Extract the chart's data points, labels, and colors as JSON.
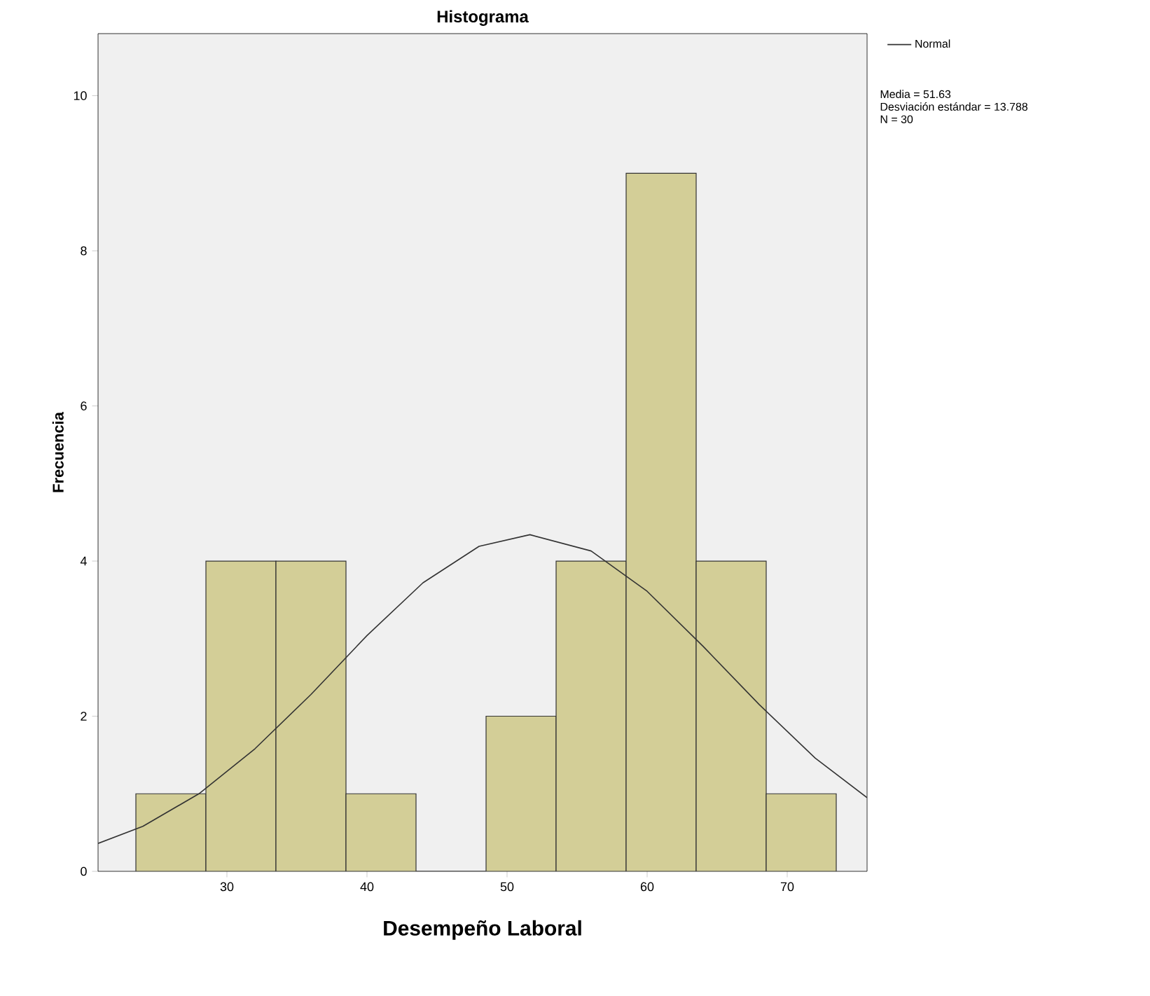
{
  "chart_data": {
    "type": "histogram",
    "title": "Histograma",
    "xlabel": "Desempeño Laboral",
    "ylabel": "Frecuencia",
    "bins": [
      23.5,
      28.5,
      33.5,
      38.5,
      43.5,
      48.5,
      53.5,
      58.5,
      63.5,
      68.5,
      73.5
    ],
    "values": [
      1,
      4,
      4,
      1,
      0,
      2,
      4,
      9,
      4,
      1
    ],
    "color": "#d3ce97",
    "series": [
      {
        "name": "Normal",
        "type": "line",
        "color": "#333333",
        "x": [
          20.8,
          24,
          28,
          32,
          36,
          40,
          44,
          48,
          51.63,
          56,
          60,
          64,
          68,
          72,
          75.7
        ],
        "values": [
          0.36,
          0.58,
          1.0,
          1.58,
          2.28,
          3.04,
          3.72,
          4.19,
          4.34,
          4.13,
          3.61,
          2.9,
          2.15,
          1.46,
          0.95
        ]
      }
    ],
    "xlim": [
      20.8,
      75.7
    ],
    "ylim": [
      0,
      10.8
    ],
    "xticks": [
      30,
      40,
      50,
      60,
      70
    ],
    "yticks": [
      0,
      2,
      4,
      6,
      8,
      10
    ],
    "grid": false,
    "legend": "top right",
    "marker": "none",
    "line_style": "solid",
    "annotations": [
      "Media = 51.63",
      "Desviación estándar = 13.788",
      "N = 30"
    ]
  }
}
